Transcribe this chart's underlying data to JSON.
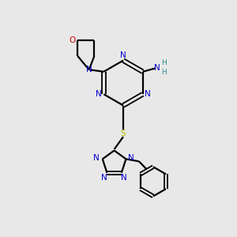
{
  "bg_color": "#e8e8e8",
  "bond_color": "#000000",
  "N_color": "#0000cc",
  "O_color": "#cc0000",
  "S_color": "#bbbb00",
  "NH2_color": "#2e8b8b",
  "figsize": [
    3.0,
    3.0
  ],
  "dpi": 100,
  "xlim": [
    0,
    10
  ],
  "ylim": [
    0,
    10
  ]
}
